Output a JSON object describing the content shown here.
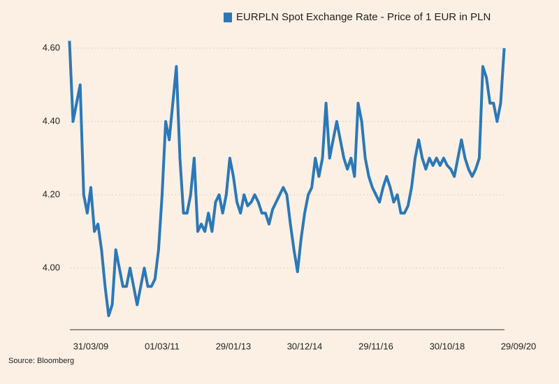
{
  "chart_data": {
    "type": "line",
    "series": [
      {
        "name": "EURPLN Spot Exchange Rate - Price of 1 EUR in PLN",
        "color": "#2b78b8",
        "values": [
          4.62,
          4.4,
          4.45,
          4.5,
          4.2,
          4.15,
          4.22,
          4.1,
          4.12,
          4.05,
          3.95,
          3.87,
          3.9,
          4.05,
          4.0,
          3.95,
          3.95,
          4.0,
          3.95,
          3.9,
          3.95,
          4.0,
          3.95,
          3.95,
          3.97,
          4.05,
          4.2,
          4.4,
          4.35,
          4.45,
          4.55,
          4.3,
          4.15,
          4.15,
          4.2,
          4.3,
          4.1,
          4.12,
          4.1,
          4.15,
          4.1,
          4.18,
          4.2,
          4.15,
          4.2,
          4.3,
          4.25,
          4.18,
          4.15,
          4.2,
          4.17,
          4.18,
          4.2,
          4.18,
          4.15,
          4.15,
          4.12,
          4.16,
          4.18,
          4.2,
          4.22,
          4.2,
          4.12,
          4.05,
          3.99,
          4.08,
          4.15,
          4.2,
          4.22,
          4.3,
          4.25,
          4.3,
          4.45,
          4.3,
          4.35,
          4.4,
          4.35,
          4.3,
          4.27,
          4.3,
          4.25,
          4.45,
          4.4,
          4.3,
          4.25,
          4.22,
          4.2,
          4.18,
          4.22,
          4.25,
          4.22,
          4.18,
          4.2,
          4.15,
          4.15,
          4.17,
          4.22,
          4.3,
          4.35,
          4.3,
          4.27,
          4.3,
          4.28,
          4.3,
          4.28,
          4.3,
          4.28,
          4.27,
          4.25,
          4.3,
          4.35,
          4.3,
          4.27,
          4.25,
          4.27,
          4.3,
          4.55,
          4.52,
          4.45,
          4.45,
          4.4,
          4.45,
          4.6,
          null,
          null,
          null,
          null
        ]
      }
    ],
    "categories": [
      null,
      null,
      null,
      null,
      null,
      null,
      "31/03/09",
      null,
      null,
      null,
      null,
      null,
      null,
      null,
      null,
      null,
      null,
      null,
      null,
      null,
      null,
      null,
      null,
      null,
      null,
      null,
      "01/03/11",
      null,
      null,
      null,
      null,
      null,
      null,
      null,
      null,
      null,
      null,
      null,
      null,
      null,
      null,
      null,
      null,
      null,
      null,
      null,
      "29/01/13",
      null,
      null,
      null,
      null,
      null,
      null,
      null,
      null,
      null,
      null,
      null,
      null,
      null,
      null,
      null,
      null,
      null,
      null,
      null,
      "30/12/14",
      null,
      null,
      null,
      null,
      null,
      null,
      null,
      null,
      null,
      null,
      null,
      null,
      null,
      null,
      null,
      null,
      null,
      null,
      null,
      "29/11/16",
      null,
      null,
      null,
      null,
      null,
      null,
      null,
      null,
      null,
      null,
      null,
      null,
      null,
      null,
      null,
      null,
      null,
      null,
      null,
      "30/10/18",
      null,
      null,
      null,
      null,
      null,
      null,
      null,
      null,
      null,
      null,
      null,
      null,
      null,
      null,
      null,
      null,
      null,
      null,
      null,
      "29/09/20"
    ],
    "ylim": [
      3.832,
      4.66
    ],
    "yticks": [
      {
        "value": 4.0,
        "label": "4.00"
      },
      {
        "value": 4.2,
        "label": "4.20"
      },
      {
        "value": 4.4,
        "label": "4.40"
      },
      {
        "value": 4.6,
        "label": "4.60"
      }
    ],
    "grid": true,
    "source": "Source: Bloomberg"
  }
}
